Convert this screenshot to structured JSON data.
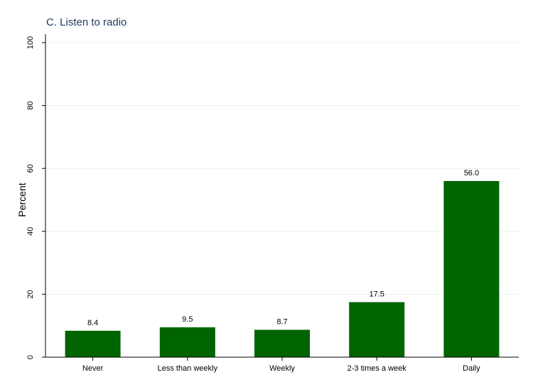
{
  "chart_data": {
    "type": "bar",
    "title": "C. Listen to radio",
    "xlabel": "",
    "ylabel": "Percent",
    "categories": [
      "Never",
      "Less than weekly",
      "Weekly",
      "2-3 times a week",
      "Daily"
    ],
    "values": [
      8.4,
      9.5,
      8.7,
      17.5,
      56.0
    ],
    "data_labels": [
      "8.4",
      "9.5",
      "8.7",
      "17.5",
      "56.0"
    ],
    "ylim": [
      0,
      100
    ],
    "yticks": [
      0,
      20,
      40,
      60,
      80,
      100
    ],
    "ytick_labels": [
      "0",
      "20",
      "40",
      "60",
      "80",
      "100"
    ],
    "grid": true,
    "legend": "none",
    "colors": {
      "bar": "#006400",
      "grid": "#eaf0f2",
      "axis": "#000000",
      "title": "#1f3a5f"
    }
  }
}
